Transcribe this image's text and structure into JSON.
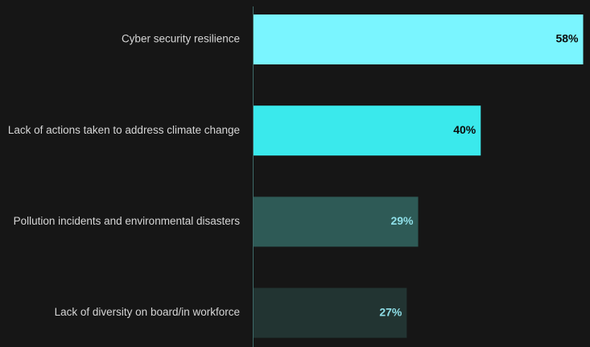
{
  "chart_data": {
    "type": "bar",
    "orientation": "horizontal",
    "categories": [
      "Cyber security resilience",
      "Lack of actions taken to address climate change",
      "Pollution incidents and environmental disasters",
      "Lack of diversity on board/in workforce"
    ],
    "values": [
      58,
      40,
      29,
      27
    ],
    "value_labels": [
      "58%",
      "40%",
      "29%",
      "27%"
    ],
    "bar_colors": [
      "#7af5ff",
      "#3ae9ec",
      "#2e5a56",
      "#223432"
    ],
    "label_colors": [
      "#0b0b0b",
      "#0b0b0b",
      "#8fdfe8",
      "#8fdfe8"
    ],
    "axis_line_color": "#3e6a68",
    "category_text_color": "#d6d6d6",
    "grid": false,
    "legend": "none"
  }
}
